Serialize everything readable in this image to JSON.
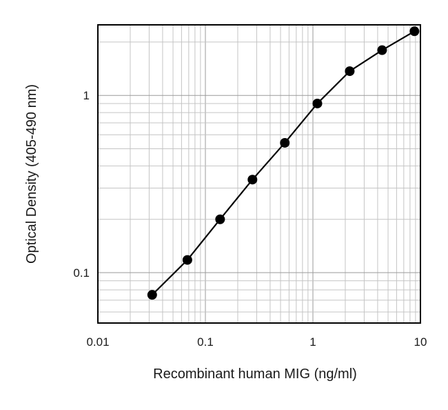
{
  "chart_data": {
    "type": "line",
    "title": "",
    "xlabel": "Recombinant human MIG (ng/ml)",
    "ylabel": "Optical Density (405-490 nm)",
    "xscale": "log",
    "yscale": "log",
    "xlim": [
      0.01,
      10
    ],
    "ylim": [
      0.052,
      2.5
    ],
    "grid": true,
    "legend": "none",
    "x_tick_labels": [
      "0.01",
      "0.1",
      "1",
      "10"
    ],
    "y_tick_labels": [
      "0.1",
      "1"
    ],
    "series": [
      {
        "x": [
          0.032,
          0.068,
          0.137,
          0.274,
          0.548,
          1.1,
          2.2,
          4.4,
          8.8
        ],
        "y": [
          0.075,
          0.118,
          0.2,
          0.335,
          0.54,
          0.9,
          1.37,
          1.8,
          2.3
        ],
        "color": "#000000",
        "marker": "circle"
      }
    ]
  }
}
